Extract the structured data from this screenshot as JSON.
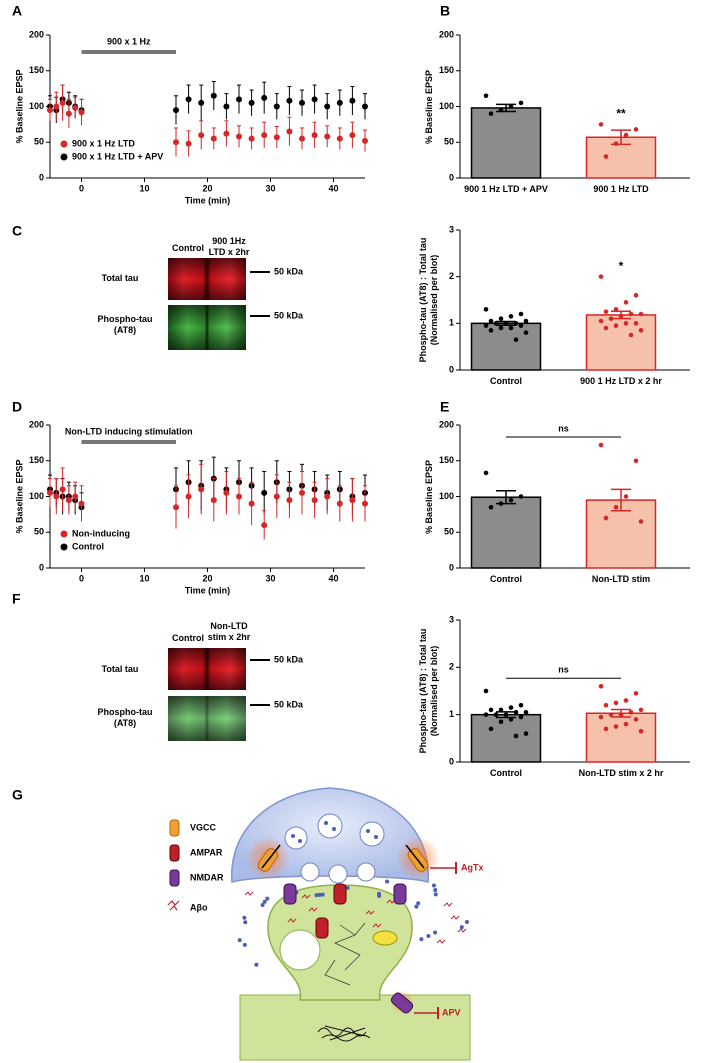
{
  "panels": [
    "A",
    "B",
    "C",
    "D",
    "E",
    "F",
    "G"
  ],
  "chart_data": [
    {
      "type": "scatter",
      "ylabel": "% Baseline EPSP",
      "xlabel": "Time (min)",
      "stim_bar": {
        "label": "900 x 1 Hz",
        "x": [
          0,
          15
        ]
      },
      "x": [
        -5,
        -4,
        -3,
        -2,
        -1,
        0,
        15,
        17,
        19,
        21,
        23,
        25,
        27,
        29,
        31,
        33,
        35,
        37,
        39,
        41,
        43,
        45
      ],
      "series": [
        {
          "name": "900 x 1 Hz LTD",
          "color": "#d62728",
          "values": [
            95,
            100,
            105,
            90,
            98,
            92,
            50,
            48,
            60,
            55,
            62,
            58,
            55,
            60,
            57,
            65,
            55,
            60,
            58,
            55,
            60,
            52
          ],
          "errors": [
            15,
            20,
            25,
            20,
            15,
            18,
            20,
            18,
            20,
            15,
            18,
            15,
            15,
            18,
            15,
            20,
            15,
            18,
            15,
            15,
            18,
            15
          ]
        },
        {
          "name": "900 x 1 Hz LTD + APV",
          "color": "#000000",
          "values": [
            100,
            95,
            110,
            105,
            100,
            95,
            95,
            110,
            105,
            115,
            100,
            110,
            105,
            112,
            100,
            108,
            105,
            110,
            100,
            105,
            108,
            100
          ],
          "errors": [
            15,
            18,
            20,
            15,
            15,
            15,
            20,
            20,
            25,
            20,
            18,
            20,
            18,
            22,
            18,
            20,
            18,
            20,
            18,
            18,
            20,
            18
          ]
        }
      ],
      "xlim": [
        -5,
        45
      ],
      "xticks": [
        0,
        10,
        20,
        30,
        40
      ],
      "ylim": [
        0,
        200
      ],
      "yticks": [
        0,
        50,
        100,
        150,
        200
      ],
      "legend": "lower left"
    },
    {
      "type": "bar",
      "ylabel": "% Baseline EPSP",
      "categories": [
        "900 1 Hz LTD + APV",
        "900 1 Hz LTD"
      ],
      "values": [
        98,
        57
      ],
      "errors": [
        5,
        10
      ],
      "points": [
        [
          115,
          105,
          100,
          95,
          90
        ],
        [
          75,
          68,
          60,
          48,
          30
        ]
      ],
      "colors": [
        "#8c8c8c",
        "#f6c1aa"
      ],
      "edge_colors": [
        "#000000",
        "#d62728"
      ],
      "ylim": [
        0,
        200
      ],
      "yticks": [
        0,
        50,
        100,
        150,
        200
      ],
      "annotation": "**",
      "bracket": false
    },
    {
      "type": "bar",
      "ylabel": "Phospho-tau (AT8) : Total tau (Normalised per blot)",
      "categories": [
        "Control",
        "900 1 Hz LTD x 2 hr"
      ],
      "values": [
        1.0,
        1.18
      ],
      "errors": [
        0.04,
        0.08
      ],
      "points": [
        [
          1.3,
          1.2,
          1.15,
          1.1,
          1.05,
          1.05,
          1.0,
          1.0,
          1.0,
          0.95,
          0.95,
          0.9,
          0.9,
          0.85,
          0.8,
          0.65
        ],
        [
          2.0,
          1.6,
          1.45,
          1.3,
          1.25,
          1.2,
          1.2,
          1.15,
          1.1,
          1.05,
          1.0,
          1.0,
          0.95,
          0.9,
          0.85,
          0.75
        ]
      ],
      "colors": [
        "#8c8c8c",
        "#f6c1aa"
      ],
      "edge_colors": [
        "#000000",
        "#d62728"
      ],
      "ylim": [
        0,
        3
      ],
      "yticks": [
        0,
        1,
        2,
        3
      ],
      "annotation": "*",
      "bracket": false
    },
    {
      "type": "scatter",
      "ylabel": "% Baseline EPSP",
      "xlabel": "Time (min)",
      "stim_bar": {
        "label": "Non-LTD inducing stimulation",
        "x": [
          0,
          15
        ]
      },
      "x": [
        -5,
        -4,
        -3,
        -2,
        -1,
        0,
        15,
        17,
        19,
        21,
        23,
        25,
        27,
        29,
        31,
        33,
        35,
        37,
        39,
        41,
        43,
        45
      ],
      "series": [
        {
          "name": "Non-inducing",
          "color": "#d62728",
          "values": [
            105,
            100,
            110,
            95,
            100,
            90,
            85,
            100,
            110,
            95,
            105,
            100,
            90,
            60,
            100,
            95,
            105,
            95,
            100,
            90,
            95,
            90
          ],
          "errors": [
            20,
            25,
            30,
            20,
            20,
            25,
            30,
            30,
            35,
            30,
            30,
            25,
            30,
            20,
            30,
            25,
            30,
            25,
            25,
            25,
            30,
            25
          ]
        },
        {
          "name": "Control",
          "color": "#000000",
          "values": [
            110,
            105,
            100,
            100,
            95,
            85,
            110,
            120,
            115,
            125,
            110,
            120,
            115,
            105,
            120,
            110,
            115,
            110,
            105,
            110,
            100,
            105
          ],
          "errors": [
            20,
            20,
            25,
            20,
            20,
            20,
            30,
            30,
            35,
            30,
            30,
            30,
            25,
            30,
            30,
            25,
            30,
            25,
            25,
            25,
            25,
            25
          ]
        }
      ],
      "xlim": [
        -5,
        45
      ],
      "xticks": [
        0,
        10,
        20,
        30,
        40
      ],
      "ylim": [
        0,
        200
      ],
      "yticks": [
        0,
        50,
        100,
        150,
        200
      ],
      "legend": "lower left"
    },
    {
      "type": "bar",
      "ylabel": "% Baseline EPSP",
      "categories": [
        "Control",
        "Non-LTD stim"
      ],
      "values": [
        99,
        95
      ],
      "errors": [
        9,
        15
      ],
      "points": [
        [
          133,
          100,
          95,
          90,
          85
        ],
        [
          172,
          150,
          100,
          85,
          70,
          65
        ]
      ],
      "colors": [
        "#8c8c8c",
        "#f6c1aa"
      ],
      "edge_colors": [
        "#000000",
        "#d62728"
      ],
      "ylim": [
        0,
        200
      ],
      "yticks": [
        0,
        50,
        100,
        150,
        200
      ],
      "annotation": "ns",
      "bracket": true
    },
    {
      "type": "bar",
      "ylabel": "Phospho-tau (AT8) : Total tau (Normalised per blot)",
      "categories": [
        "Control",
        "Non-LTD stim x 2 hr"
      ],
      "values": [
        1.0,
        1.03
      ],
      "errors": [
        0.06,
        0.08
      ],
      "points": [
        [
          1.5,
          1.2,
          1.15,
          1.1,
          1.1,
          1.05,
          1.05,
          1.0,
          1.0,
          1.0,
          0.95,
          0.9,
          0.85,
          0.7,
          0.6,
          0.55
        ],
        [
          1.6,
          1.45,
          1.3,
          1.25,
          1.2,
          1.1,
          1.05,
          1.0,
          1.0,
          0.95,
          0.9,
          0.8,
          0.75,
          0.7,
          0.65
        ]
      ],
      "colors": [
        "#8c8c8c",
        "#f6c1aa"
      ],
      "edge_colors": [
        "#000000",
        "#d62728"
      ],
      "ylim": [
        0,
        3
      ],
      "yticks": [
        0,
        1,
        2,
        3
      ],
      "annotation": "ns",
      "bracket": true
    }
  ],
  "blots": [
    {
      "lanes": [
        "Control",
        "900 1Hz LTD x 2hr"
      ],
      "rows": [
        {
          "name": "Total tau",
          "marker": "50 kDa"
        },
        {
          "name": "Phospho-tau (AT8)",
          "marker": "50 kDa"
        }
      ]
    },
    {
      "lanes": [
        "Control",
        "Non-LTD stim x 2hr"
      ],
      "rows": [
        {
          "name": "Total tau",
          "marker": "50 kDa"
        },
        {
          "name": "Phospho-tau (AT8)",
          "marker": "50 kDa"
        }
      ]
    }
  ],
  "diagram": {
    "legend": [
      "VGCC",
      "AMPAR",
      "NMDAR",
      "Aβo"
    ],
    "blockers": [
      "AgTx",
      "APV"
    ]
  }
}
